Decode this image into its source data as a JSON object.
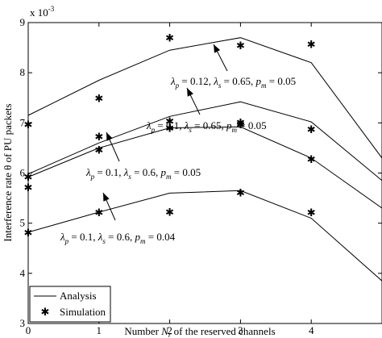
{
  "chart_data": {
    "type": "line",
    "xlabel": "Number N_r of the reserved channels",
    "ylabel": "Interference rate θ of PU packets",
    "y_exponent_label": "x 10",
    "y_exponent_power": "-3",
    "xlim": [
      0,
      5
    ],
    "ylim": [
      3,
      9
    ],
    "xticks": [
      0,
      1,
      2,
      3,
      4
    ],
    "yticks": [
      3,
      4,
      5,
      6,
      7,
      8,
      9
    ],
    "grid": false,
    "legend_position": "bottom-left",
    "legend": [
      {
        "label": "Analysis",
        "style": "line"
      },
      {
        "label": "Simulation",
        "style": "asterisk"
      }
    ],
    "series": [
      {
        "params": {
          "lambda_p": "0.12",
          "lambda_s": "0.65",
          "p_m": "0.05"
        },
        "analysis": {
          "x": [
            0,
            1,
            2,
            3,
            4,
            5
          ],
          "y": [
            7.15,
            7.85,
            8.45,
            8.7,
            8.2,
            6.3
          ]
        },
        "simulation": {
          "x": [
            0,
            1,
            2,
            3,
            4
          ],
          "y": [
            6.97,
            7.5,
            8.7,
            8.55,
            8.57
          ]
        }
      },
      {
        "params": {
          "lambda_p": "0.1",
          "lambda_s": "0.65",
          "p_m": "0.05"
        },
        "analysis": {
          "x": [
            0,
            1,
            2,
            3,
            4,
            5
          ],
          "y": [
            5.98,
            6.6,
            7.13,
            7.42,
            7.02,
            5.85
          ]
        },
        "simulation": {
          "x": [
            0,
            1,
            2,
            3,
            4
          ],
          "y": [
            5.93,
            6.73,
            7.04,
            7.01,
            6.88
          ]
        }
      },
      {
        "params": {
          "lambda_p": "0.1",
          "lambda_s": "0.6",
          "p_m": "0.05"
        },
        "analysis": {
          "x": [
            0,
            1,
            2,
            3,
            4,
            5
          ],
          "y": [
            5.92,
            6.5,
            6.9,
            6.92,
            6.3,
            5.3
          ]
        },
        "simulation": {
          "x": [
            0,
            1,
            2,
            3,
            4
          ],
          "y": [
            5.72,
            6.47,
            6.9,
            6.97,
            6.28
          ]
        }
      },
      {
        "params": {
          "lambda_p": "0.1",
          "lambda_s": "0.6",
          "p_m": "0.04"
        },
        "analysis": {
          "x": [
            0,
            1,
            2,
            3,
            4,
            5
          ],
          "y": [
            4.82,
            5.22,
            5.6,
            5.65,
            5.1,
            3.85
          ]
        },
        "simulation": {
          "x": [
            0,
            1,
            2,
            3,
            4
          ],
          "y": [
            4.82,
            5.22,
            5.23,
            5.61,
            5.22
          ]
        }
      }
    ],
    "annotations": [
      {
        "series": 0,
        "text": {
          "lp": "= 0.12, ",
          "ls": "= 0.65, ",
          "pm": "= 0.05"
        }
      },
      {
        "series": 1,
        "text": {
          "lp": "= 0.1, ",
          "ls": "= 0.65, ",
          "pm": "= 0.05"
        }
      },
      {
        "series": 2,
        "text": {
          "lp": "= 0.1, ",
          "ls": "= 0.6, ",
          "pm": "= 0.05"
        }
      },
      {
        "series": 3,
        "text": {
          "lp": "= 0.1, ",
          "ls": "= 0.6, ",
          "pm": "= 0.04"
        }
      }
    ],
    "symbols": {
      "lambda": "λ",
      "sub_p": "p",
      "sub_s": "s",
      "p_m_base": "p",
      "sub_m": "m"
    }
  }
}
